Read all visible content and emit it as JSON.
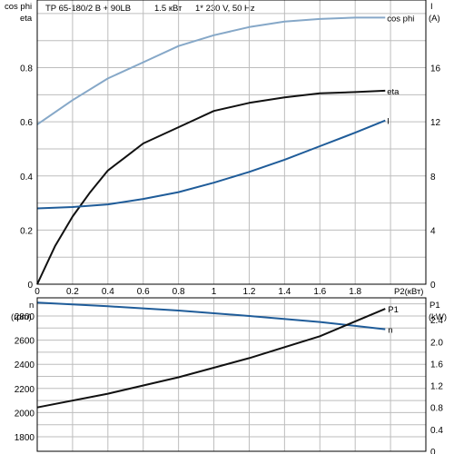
{
  "header": {
    "model": "TP 65-180/2 B + 90LB",
    "power": "1.5 кВт",
    "supply": "1* 230 V, 50 Hz"
  },
  "colors": {
    "cosphi": "#86a8c8",
    "eta": "#111111",
    "current": "#1f5c99",
    "n": "#1f5c99",
    "p1": "#111111",
    "grid": "#bdbdbd"
  },
  "chart_data": [
    {
      "type": "line",
      "x_label": "P2(кВт)",
      "x_ticks": [
        "0",
        "0.2",
        "0.4",
        "0.6",
        "0.8",
        "1",
        "1.2",
        "1.4",
        "1.6",
        "1.8"
      ],
      "xlim": [
        0,
        2.2
      ],
      "left_axis_labels": [
        "cos phi",
        "eta"
      ],
      "left_ticks": [
        "0",
        "0.2",
        "0.4",
        "0.6",
        "0.8"
      ],
      "ylim_left": [
        0,
        1.05
      ],
      "right_axis_labels": [
        "I",
        "(A)"
      ],
      "right_ticks": [
        "0",
        "4",
        "8",
        "12",
        "16"
      ],
      "ylim_right": [
        0,
        21
      ],
      "series": [
        {
          "name": "cos phi",
          "axis": "left",
          "x": [
            0,
            0.2,
            0.4,
            0.6,
            0.8,
            1.0,
            1.2,
            1.4,
            1.6,
            1.8,
            1.97
          ],
          "y": [
            0.59,
            0.68,
            0.76,
            0.82,
            0.88,
            0.92,
            0.95,
            0.97,
            0.98,
            0.985,
            0.985
          ]
        },
        {
          "name": "eta",
          "axis": "left",
          "x": [
            0,
            0.1,
            0.2,
            0.3,
            0.4,
            0.5,
            0.6,
            0.8,
            1.0,
            1.2,
            1.4,
            1.6,
            1.8,
            1.97
          ],
          "y": [
            0,
            0.14,
            0.25,
            0.34,
            0.42,
            0.47,
            0.52,
            0.58,
            0.64,
            0.67,
            0.69,
            0.705,
            0.71,
            0.715
          ]
        },
        {
          "name": "I",
          "axis": "right",
          "x": [
            0,
            0.2,
            0.4,
            0.6,
            0.8,
            1.0,
            1.2,
            1.4,
            1.6,
            1.8,
            1.97
          ],
          "y": [
            5.6,
            5.7,
            5.9,
            6.3,
            6.8,
            7.5,
            8.3,
            9.2,
            10.2,
            11.2,
            12.1
          ]
        }
      ]
    },
    {
      "type": "line",
      "left_axis_labels": [
        "n",
        "(rpm)"
      ],
      "left_ticks": [
        "1800",
        "2000",
        "2200",
        "2400",
        "2600",
        "2800"
      ],
      "ylim_left": [
        1680,
        2950
      ],
      "right_axis_labels": [
        "P1",
        "(kW)"
      ],
      "right_ticks": [
        "0",
        "0.4",
        "0.8",
        "1.2",
        "1.6",
        "2.0",
        "2.4"
      ],
      "ylim_right": [
        0,
        2.8
      ],
      "series": [
        {
          "name": "n",
          "axis": "left",
          "x": [
            0,
            0.4,
            0.8,
            1.2,
            1.6,
            1.97
          ],
          "y": [
            2910,
            2880,
            2845,
            2800,
            2750,
            2690
          ]
        },
        {
          "name": "P1",
          "axis": "right",
          "x": [
            0,
            0.4,
            0.8,
            1.2,
            1.6,
            1.97
          ],
          "y": [
            0.8,
            1.05,
            1.35,
            1.7,
            2.1,
            2.6
          ]
        }
      ]
    }
  ]
}
